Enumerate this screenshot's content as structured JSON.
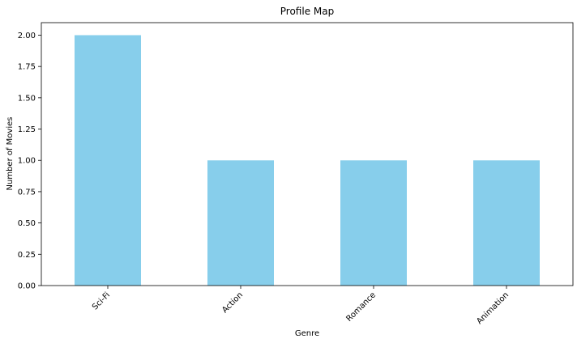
{
  "chart_data": {
    "type": "bar",
    "title": "Profile Map",
    "xlabel": "Genre",
    "ylabel": "Number of Movies",
    "categories": [
      "Sci-Fi",
      "Action",
      "Romance",
      "Animation"
    ],
    "values": [
      2,
      1,
      1,
      1
    ],
    "ylim": [
      0,
      2.1
    ],
    "yticks": [
      "0.00",
      "0.25",
      "0.50",
      "0.75",
      "1.00",
      "1.25",
      "1.50",
      "1.75",
      "2.00"
    ],
    "bar_color": "#87CEEB",
    "grid": false,
    "legend": "none"
  }
}
